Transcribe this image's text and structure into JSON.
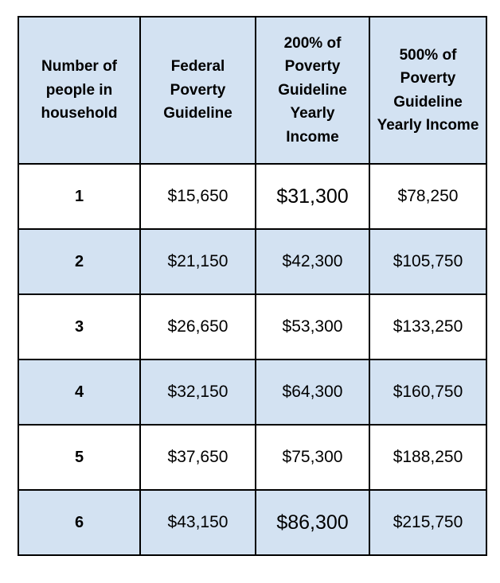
{
  "table": {
    "headers": [
      "Number of people in household",
      "Federal Poverty Guideline",
      "200% of Poverty Guideline Yearly Income",
      "500% of Poverty Guideline Yearly Income"
    ],
    "rows": [
      [
        "1",
        "$15,650",
        "$31,300",
        "$78,250"
      ],
      [
        "2",
        "$21,150",
        "$42,300",
        "$105,750"
      ],
      [
        "3",
        "$26,650",
        "$53,300",
        "$133,250"
      ],
      [
        "4",
        "$32,150",
        "$64,300",
        "$160,750"
      ],
      [
        "5",
        "$37,650",
        "$75,300",
        "$188,250"
      ],
      [
        "6",
        "$43,150",
        "$86,300",
        "$215,750"
      ]
    ],
    "colors": {
      "header_bg": "#d3e2f2",
      "alt_row_bg": "#d3e2f2",
      "row_bg": "#ffffff",
      "border": "#000000",
      "text": "#000000"
    }
  }
}
